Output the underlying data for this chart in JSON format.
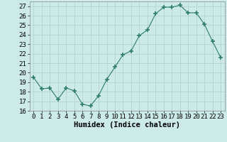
{
  "x": [
    0,
    1,
    2,
    3,
    4,
    5,
    6,
    7,
    8,
    9,
    10,
    11,
    12,
    13,
    14,
    15,
    16,
    17,
    18,
    19,
    20,
    21,
    22,
    23
  ],
  "y": [
    19.5,
    18.3,
    18.4,
    17.2,
    18.4,
    18.1,
    16.7,
    16.5,
    17.6,
    19.3,
    20.6,
    21.9,
    22.3,
    23.9,
    24.5,
    26.2,
    26.9,
    26.9,
    27.1,
    26.3,
    26.3,
    25.1,
    23.3,
    21.6
  ],
  "line_color": "#2e7d6e",
  "marker": "+",
  "marker_size": 4,
  "bg_color": "#cceae7",
  "grid_major_color": "#b0d0cc",
  "grid_minor_color": "#c8e4e0",
  "ylim": [
    16,
    27.5
  ],
  "yticks": [
    16,
    17,
    18,
    19,
    20,
    21,
    22,
    23,
    24,
    25,
    26,
    27
  ],
  "xticks": [
    0,
    1,
    2,
    3,
    4,
    5,
    6,
    7,
    8,
    9,
    10,
    11,
    12,
    13,
    14,
    15,
    16,
    17,
    18,
    19,
    20,
    21,
    22,
    23
  ],
  "xlim": [
    -0.5,
    23.5
  ],
  "xlabel": "Humidex (Indice chaleur)",
  "tick_label_size": 6.5,
  "xlabel_size": 7.5
}
